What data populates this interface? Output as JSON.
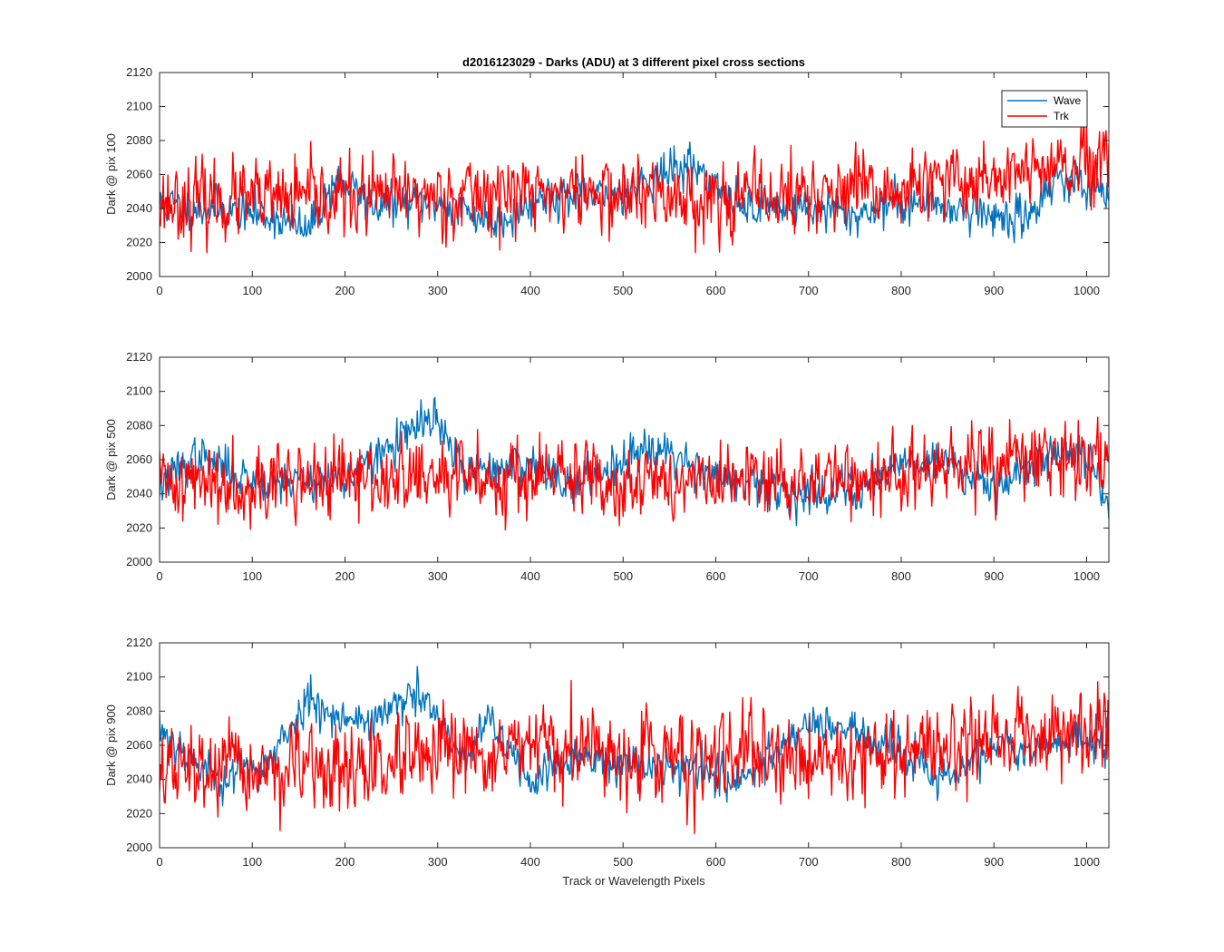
{
  "chart_data": [
    {
      "type": "line",
      "title": "d2016123029 - Darks (ADU) at 3 different pixel cross sections",
      "xlabel": "",
      "ylabel": "Dark @ pix 100",
      "xlim": [
        0,
        1024
      ],
      "ylim": [
        2000,
        2120
      ],
      "xticks": [
        "0",
        "100",
        "200",
        "300",
        "400",
        "500",
        "600",
        "700",
        "800",
        "900",
        "1000"
      ],
      "yticks": [
        "2000",
        "2020",
        "2040",
        "2060",
        "2080",
        "2100",
        "2120"
      ],
      "legend": "top-right",
      "series": [
        {
          "name": "Wave",
          "color": "#0072BD",
          "anchors": [
            [
              0,
              2042
            ],
            [
              60,
              2040
            ],
            [
              120,
              2036
            ],
            [
              160,
              2026
            ],
            [
              190,
              2058
            ],
            [
              230,
              2042
            ],
            [
              300,
              2044
            ],
            [
              360,
              2032
            ],
            [
              420,
              2048
            ],
            [
              480,
              2046
            ],
            [
              530,
              2058
            ],
            [
              575,
              2066
            ],
            [
              620,
              2042
            ],
            [
              680,
              2042
            ],
            [
              750,
              2036
            ],
            [
              800,
              2044
            ],
            [
              870,
              2040
            ],
            [
              930,
              2032
            ],
            [
              970,
              2060
            ],
            [
              1024,
              2045
            ]
          ],
          "noise": 6,
          "seed": 11
        },
        {
          "name": "Trk",
          "color": "#FF0000",
          "anchors": [
            [
              0,
              2044
            ],
            [
              200,
              2046
            ],
            [
              400,
              2050
            ],
            [
              600,
              2046
            ],
            [
              800,
              2050
            ],
            [
              900,
              2060
            ],
            [
              1024,
              2065
            ]
          ],
          "noise": 11,
          "seed": 23
        }
      ]
    },
    {
      "type": "line",
      "title": "",
      "xlabel": "",
      "ylabel": "Dark @ pix 500",
      "xlim": [
        0,
        1024
      ],
      "ylim": [
        2000,
        2120
      ],
      "xticks": [
        "0",
        "100",
        "200",
        "300",
        "400",
        "500",
        "600",
        "700",
        "800",
        "900",
        "1000"
      ],
      "yticks": [
        "2000",
        "2020",
        "2040",
        "2060",
        "2080",
        "2100",
        "2120"
      ],
      "legend": "",
      "series": [
        {
          "name": "Wave",
          "color": "#0072BD",
          "anchors": [
            [
              0,
              2045
            ],
            [
              40,
              2062
            ],
            [
              100,
              2048
            ],
            [
              200,
              2048
            ],
            [
              250,
              2068
            ],
            [
              295,
              2085
            ],
            [
              330,
              2052
            ],
            [
              400,
              2058
            ],
            [
              450,
              2045
            ],
            [
              530,
              2070
            ],
            [
              560,
              2062
            ],
            [
              620,
              2045
            ],
            [
              700,
              2040
            ],
            [
              760,
              2045
            ],
            [
              800,
              2060
            ],
            [
              850,
              2058
            ],
            [
              900,
              2046
            ],
            [
              960,
              2062
            ],
            [
              1000,
              2065
            ],
            [
              1024,
              2035
            ]
          ],
          "noise": 6,
          "seed": 37
        },
        {
          "name": "Trk",
          "color": "#FF0000",
          "anchors": [
            [
              0,
              2047
            ],
            [
              200,
              2048
            ],
            [
              400,
              2050
            ],
            [
              600,
              2046
            ],
            [
              800,
              2050
            ],
            [
              900,
              2058
            ],
            [
              1024,
              2062
            ]
          ],
          "noise": 11,
          "seed": 41
        }
      ]
    },
    {
      "type": "line",
      "title": "",
      "xlabel": "Track or Wavelength Pixels",
      "ylabel": "Dark @ pix 900",
      "xlim": [
        0,
        1024
      ],
      "ylim": [
        2000,
        2120
      ],
      "xticks": [
        "0",
        "100",
        "200",
        "300",
        "400",
        "500",
        "600",
        "700",
        "800",
        "900",
        "1000"
      ],
      "yticks": [
        "2000",
        "2020",
        "2040",
        "2060",
        "2080",
        "2100",
        "2120"
      ],
      "legend": "",
      "series": [
        {
          "name": "Wave",
          "color": "#0072BD",
          "anchors": [
            [
              0,
              2070
            ],
            [
              60,
              2040
            ],
            [
              120,
              2050
            ],
            [
              160,
              2088
            ],
            [
              200,
              2075
            ],
            [
              230,
              2075
            ],
            [
              280,
              2090
            ],
            [
              330,
              2050
            ],
            [
              355,
              2075
            ],
            [
              400,
              2040
            ],
            [
              450,
              2052
            ],
            [
              520,
              2050
            ],
            [
              600,
              2045
            ],
            [
              620,
              2035
            ],
            [
              700,
              2075
            ],
            [
              760,
              2065
            ],
            [
              800,
              2055
            ],
            [
              850,
              2040
            ],
            [
              900,
              2060
            ],
            [
              960,
              2060
            ],
            [
              1024,
              2065
            ]
          ],
          "noise": 6,
          "seed": 53
        },
        {
          "name": "Trk",
          "color": "#FF0000",
          "anchors": [
            [
              0,
              2045
            ],
            [
              200,
              2045
            ],
            [
              400,
              2058
            ],
            [
              600,
              2052
            ],
            [
              800,
              2055
            ],
            [
              900,
              2065
            ],
            [
              1024,
              2070
            ]
          ],
          "noise": 12,
          "seed": 67
        }
      ]
    }
  ]
}
